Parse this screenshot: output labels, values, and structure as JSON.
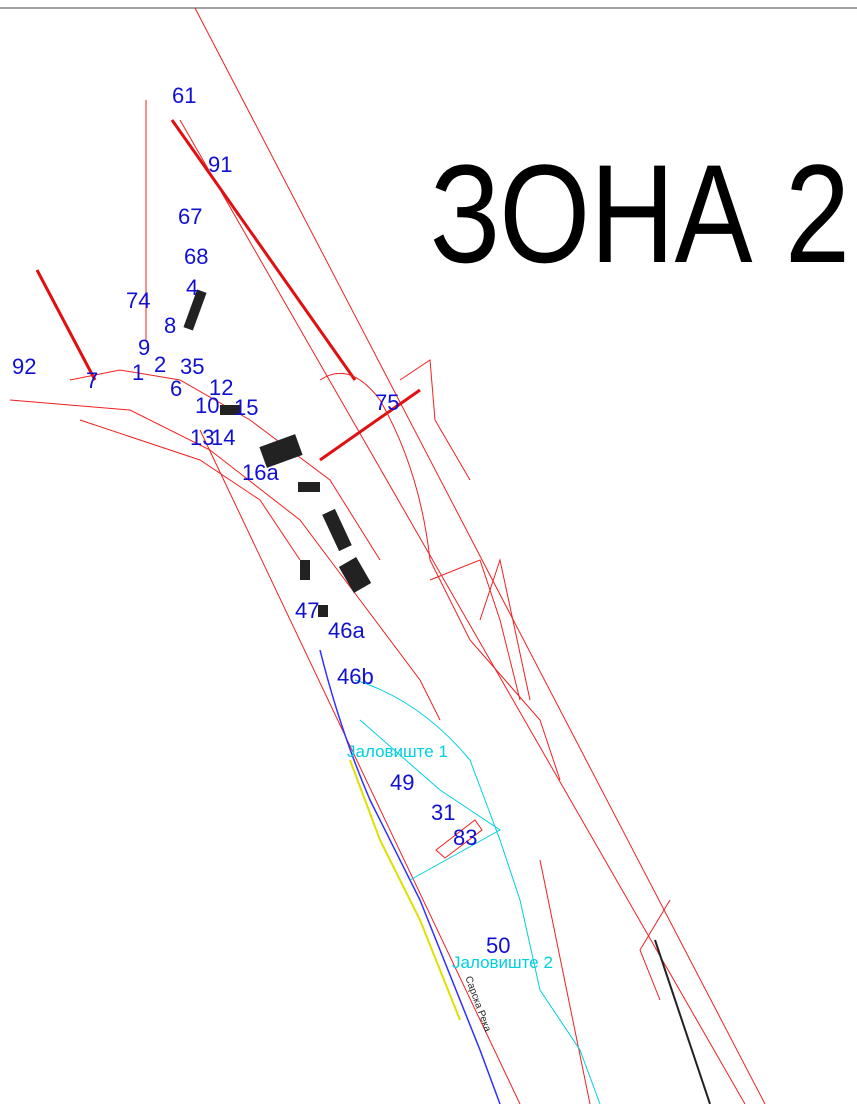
{
  "title": "ЗОНА 2",
  "labels": [
    "61",
    "91",
    "67",
    "68",
    "4",
    "74",
    "8",
    "9",
    "2",
    "35",
    "92",
    "7",
    "1",
    "6",
    "12",
    "10",
    "15",
    "13",
    "14",
    "16a",
    "75",
    "47",
    "46a",
    "46b",
    "49",
    "31",
    "83",
    "50"
  ],
  "areas": [
    "Јаловиште 1",
    "Јаловиште 2"
  ],
  "river": "Сарска Река"
}
